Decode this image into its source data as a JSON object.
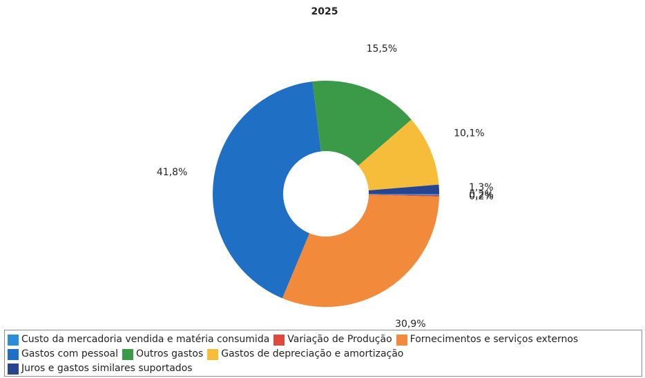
{
  "chart_data": {
    "type": "donut",
    "title": "2025",
    "categories": [
      "Custo da mercadoria vendida e matéria consumida",
      "Variação de Produção",
      "Fornecimentos e serviços externos",
      "Gastos com pessoal",
      "Outros gastos",
      "Gastos de depreciação e amortização",
      "Juros e gastos similares suportados"
    ],
    "values": [
      0.2,
      0.2,
      30.9,
      41.8,
      15.5,
      10.1,
      1.3
    ],
    "value_labels": [
      "0,2%",
      "0,2%",
      "30,9%",
      "41,8%",
      "15,5%",
      "10,1%",
      "1,3%"
    ],
    "colors": [
      "#2a8fd6",
      "#e04a3c",
      "#f28a3c",
      "#1f6fc4",
      "#3a9a48",
      "#f6bd3a",
      "#27448f"
    ],
    "legend": "bottom"
  }
}
